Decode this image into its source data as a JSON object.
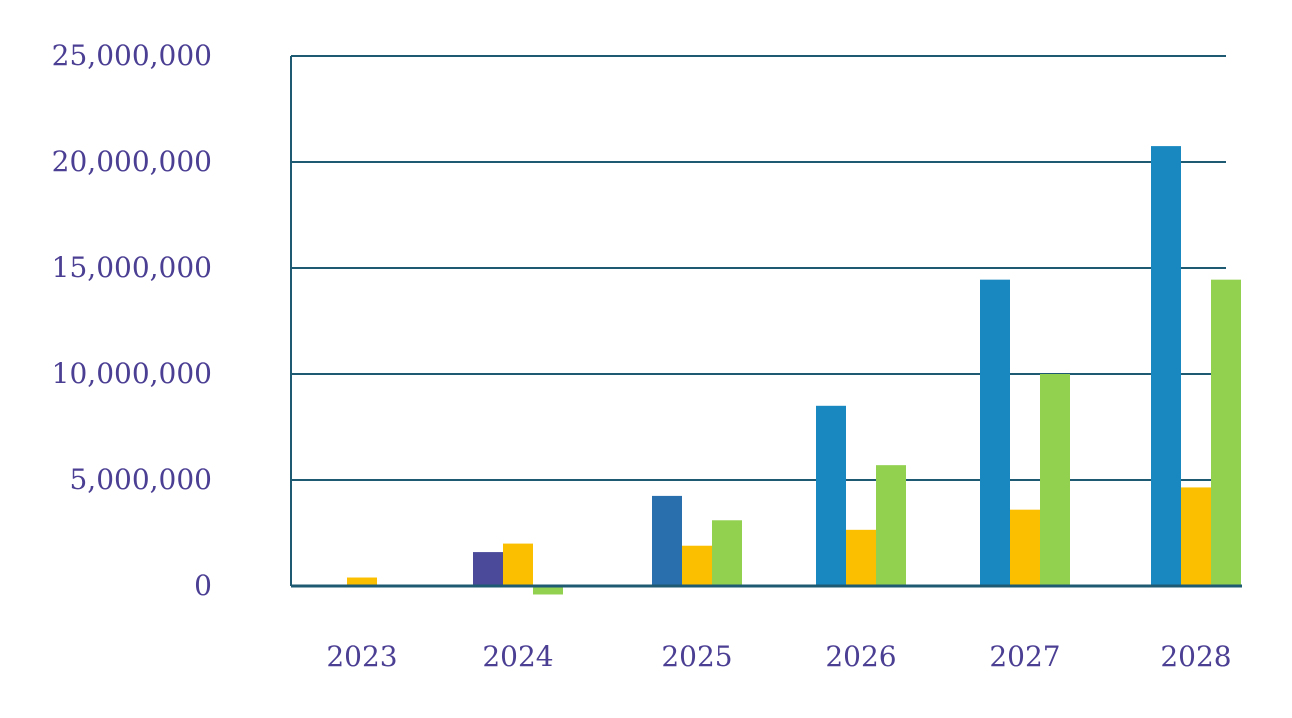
{
  "chart_data": {
    "type": "bar",
    "title": "",
    "xlabel": "",
    "ylabel": "",
    "ylim": [
      0,
      25000000
    ],
    "yticks": [
      0,
      5000000,
      10000000,
      15000000,
      20000000,
      25000000
    ],
    "ytick_labels": [
      "0",
      "5,000,000",
      "10,000,000",
      "15,000,000",
      "20,000,000",
      "25,000,000"
    ],
    "grid": true,
    "legend": "none",
    "categories": [
      "2023",
      "2024",
      "2025",
      "2026",
      "2027",
      "2028"
    ],
    "series": [
      {
        "color": "#1a88c0",
        "point_colors": [
          "#1a88c0",
          "#4b4a9a",
          "#2a6fad",
          "#1a88c0",
          "#1a88c0",
          "#1a88c0"
        ],
        "values": [
          0,
          1600000,
          4250000,
          8500000,
          14450000,
          20750000
        ]
      },
      {
        "color": "#fbbf00",
        "values": [
          400000,
          2000000,
          1900000,
          2650000,
          3600000,
          4650000
        ]
      },
      {
        "color": "#92d050",
        "values": [
          0,
          -400000,
          3100000,
          5700000,
          10000000,
          14450000
        ]
      }
    ],
    "colors": {
      "axis_text": "#4b3f93",
      "gridline": "#1f5a73",
      "axis_line": "#1f5a73"
    }
  }
}
